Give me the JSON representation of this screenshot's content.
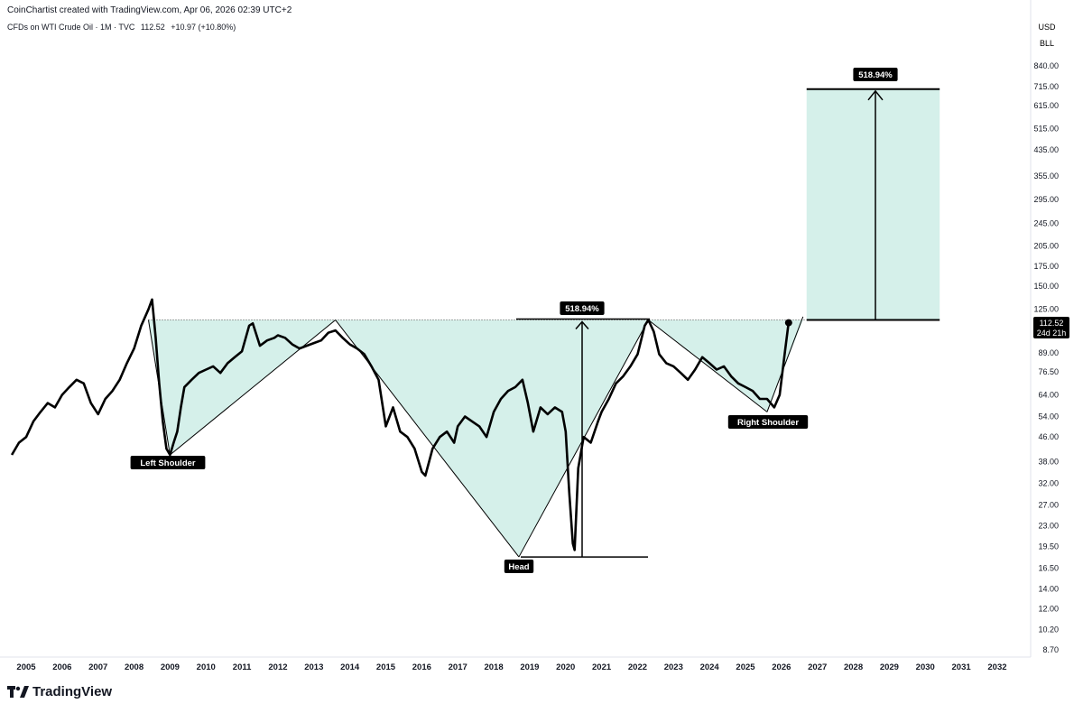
{
  "credit": "CoinChartist created with TradingView.com, Apr 06, 2026 02:39 UTC+2",
  "legend": {
    "symbol": "CFDs on WTI Crude Oil · 1M · TVC",
    "price": "112.52",
    "change": "+10.97 (+10.80%)"
  },
  "price_axis": {
    "currency": "USD",
    "unit": "BLL",
    "ticks": [
      "840.00",
      "715.00",
      "615.00",
      "515.00",
      "435.00",
      "355.00",
      "295.00",
      "245.00",
      "205.00",
      "175.00",
      "150.00",
      "125.00",
      "89.00",
      "76.50",
      "64.00",
      "54.00",
      "46.00",
      "38.00",
      "32.00",
      "27.00",
      "23.00",
      "19.50",
      "16.50",
      "14.00",
      "12.00",
      "10.20",
      "8.70"
    ],
    "current_price": "112.52",
    "countdown": "24d 21h"
  },
  "brand": {
    "name": "TradingView"
  },
  "colors": {
    "fill": "#d5f0ea",
    "line": "#000000",
    "label_bg": "#000000",
    "label_text": "#ffffff"
  },
  "chart_data": {
    "type": "line",
    "title": "CFDs on WTI Crude Oil · 1M · TVC",
    "xlabel": "",
    "ylabel": "",
    "scale": "log",
    "ylim": [
      8.0,
      900
    ],
    "xlim": [
      2004.6,
      2033.0
    ],
    "x_ticks": [
      "2005",
      "2006",
      "2007",
      "2008",
      "2009",
      "2010",
      "2011",
      "2012",
      "2013",
      "2014",
      "2015",
      "2016",
      "2017",
      "2018",
      "2019",
      "2020",
      "2021",
      "2022",
      "2023",
      "2024",
      "2025",
      "2026",
      "2027",
      "2028",
      "2029",
      "2030",
      "2031",
      "2032"
    ],
    "grid": false,
    "series": [
      {
        "x": [
          2004.6,
          2004.8,
          2005.0,
          2005.2,
          2005.4,
          2005.6,
          2005.8,
          2006.0,
          2006.2,
          2006.4,
          2006.6,
          2006.8,
          2007.0,
          2007.2,
          2007.4,
          2007.6,
          2007.8,
          2008.0,
          2008.2,
          2008.4,
          2008.5,
          2008.6,
          2008.7,
          2008.8,
          2008.9,
          2009.0,
          2009.1,
          2009.2,
          2009.3,
          2009.4,
          2009.6,
          2009.8,
          2010.0,
          2010.2,
          2010.4,
          2010.6,
          2010.8,
          2011.0,
          2011.2,
          2011.3,
          2011.5,
          2011.7,
          2011.9,
          2012.0,
          2012.2,
          2012.4,
          2012.6,
          2012.8,
          2013.0,
          2013.2,
          2013.4,
          2013.6,
          2013.8,
          2014.0,
          2014.2,
          2014.4,
          2014.6,
          2014.8,
          2015.0,
          2015.2,
          2015.4,
          2015.6,
          2015.8,
          2016.0,
          2016.1,
          2016.3,
          2016.5,
          2016.7,
          2016.9,
          2017.0,
          2017.2,
          2017.4,
          2017.6,
          2017.8,
          2018.0,
          2018.2,
          2018.4,
          2018.6,
          2018.8,
          2018.95,
          2019.1,
          2019.3,
          2019.5,
          2019.7,
          2019.9,
          2020.0,
          2020.1,
          2020.2,
          2020.25,
          2020.35,
          2020.5,
          2020.7,
          2020.9,
          2021.0,
          2021.2,
          2021.4,
          2021.6,
          2021.8,
          2022.0,
          2022.2,
          2022.3,
          2022.45,
          2022.6,
          2022.8,
          2023.0,
          2023.2,
          2023.4,
          2023.6,
          2023.8,
          2024.0,
          2024.2,
          2024.4,
          2024.6,
          2024.8,
          2025.0,
          2025.2,
          2025.4,
          2025.6,
          2025.8,
          2025.95,
          2026.1,
          2026.2
        ],
        "y": [
          40,
          44,
          46,
          52,
          56,
          60,
          58,
          64,
          68,
          72,
          70,
          60,
          55,
          62,
          66,
          72,
          82,
          92,
          110,
          125,
          135,
          100,
          70,
          52,
          42,
          40,
          44,
          48,
          58,
          68,
          72,
          76,
          78,
          80,
          76,
          82,
          86,
          90,
          110,
          112,
          94,
          98,
          100,
          102,
          100,
          95,
          92,
          94,
          96,
          98,
          104,
          106,
          100,
          95,
          92,
          88,
          80,
          72,
          50,
          58,
          48,
          46,
          42,
          35,
          34,
          42,
          46,
          48,
          44,
          50,
          54,
          52,
          50,
          46,
          56,
          62,
          66,
          68,
          72,
          60,
          48,
          58,
          55,
          58,
          56,
          48,
          30,
          20,
          19,
          36,
          46,
          44,
          52,
          56,
          62,
          70,
          74,
          80,
          88,
          110,
          115,
          105,
          88,
          82,
          80,
          76,
          72,
          78,
          86,
          82,
          78,
          80,
          74,
          70,
          68,
          66,
          62,
          62,
          58,
          64,
          90,
          112.52
        ]
      }
    ],
    "annotations": [
      {
        "label": "Left Shoulder"
      },
      {
        "label": "Head"
      },
      {
        "label": "Right Shoulder"
      },
      {
        "label": "518.94%"
      },
      {
        "label": "518.94%"
      }
    ]
  }
}
